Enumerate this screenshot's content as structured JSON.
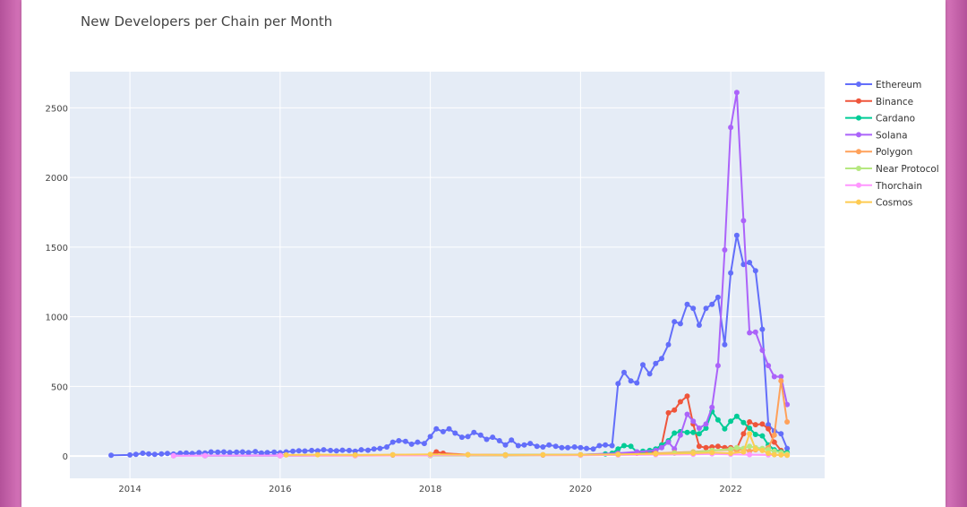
{
  "chart_data": {
    "type": "line",
    "title": "New Developers per Chain per Month",
    "xlabel": "",
    "ylabel": "",
    "ylim": [
      -160,
      2760
    ],
    "xlim": [
      2013.2,
      2023.25
    ],
    "x_ticks": [
      2014,
      2016,
      2018,
      2020,
      2022
    ],
    "x_tick_labels": [
      "2014",
      "2016",
      "2018",
      "2020",
      "2022"
    ],
    "y_ticks": [
      0,
      500,
      1000,
      1500,
      2000,
      2500
    ],
    "y_tick_labels": [
      "0",
      "500",
      "1000",
      "1500",
      "2000",
      "2500"
    ],
    "grid": true,
    "legend_position": "right",
    "background_color": "#e5ecf6",
    "series": [
      {
        "name": "Ethereum",
        "color": "#636efa",
        "points": [
          [
            2013.75,
            5
          ],
          [
            2014.0,
            8
          ],
          [
            2014.08,
            12
          ],
          [
            2014.17,
            20
          ],
          [
            2014.25,
            15
          ],
          [
            2014.33,
            12
          ],
          [
            2014.42,
            15
          ],
          [
            2014.5,
            18
          ],
          [
            2014.58,
            14
          ],
          [
            2014.67,
            20
          ],
          [
            2014.75,
            22
          ],
          [
            2014.83,
            18
          ],
          [
            2014.92,
            25
          ],
          [
            2015.0,
            22
          ],
          [
            2015.08,
            30
          ],
          [
            2015.17,
            28
          ],
          [
            2015.25,
            30
          ],
          [
            2015.33,
            26
          ],
          [
            2015.42,
            28
          ],
          [
            2015.5,
            30
          ],
          [
            2015.58,
            25
          ],
          [
            2015.67,
            32
          ],
          [
            2015.75,
            22
          ],
          [
            2015.83,
            25
          ],
          [
            2015.92,
            28
          ],
          [
            2016.0,
            24
          ],
          [
            2016.08,
            30
          ],
          [
            2016.17,
            35
          ],
          [
            2016.25,
            38
          ],
          [
            2016.33,
            36
          ],
          [
            2016.42,
            40
          ],
          [
            2016.5,
            38
          ],
          [
            2016.58,
            45
          ],
          [
            2016.67,
            40
          ],
          [
            2016.75,
            38
          ],
          [
            2016.83,
            42
          ],
          [
            2016.92,
            40
          ],
          [
            2017.0,
            35
          ],
          [
            2017.08,
            45
          ],
          [
            2017.17,
            42
          ],
          [
            2017.25,
            50
          ],
          [
            2017.33,
            55
          ],
          [
            2017.42,
            65
          ],
          [
            2017.5,
            100
          ],
          [
            2017.58,
            110
          ],
          [
            2017.67,
            105
          ],
          [
            2017.75,
            85
          ],
          [
            2017.83,
            100
          ],
          [
            2017.92,
            90
          ],
          [
            2018.0,
            140
          ],
          [
            2018.08,
            195
          ],
          [
            2018.17,
            175
          ],
          [
            2018.25,
            195
          ],
          [
            2018.33,
            165
          ],
          [
            2018.42,
            135
          ],
          [
            2018.5,
            140
          ],
          [
            2018.58,
            170
          ],
          [
            2018.67,
            150
          ],
          [
            2018.75,
            120
          ],
          [
            2018.83,
            135
          ],
          [
            2018.92,
            110
          ],
          [
            2019.0,
            80
          ],
          [
            2019.08,
            115
          ],
          [
            2019.17,
            75
          ],
          [
            2019.25,
            80
          ],
          [
            2019.33,
            90
          ],
          [
            2019.42,
            70
          ],
          [
            2019.5,
            65
          ],
          [
            2019.58,
            80
          ],
          [
            2019.67,
            70
          ],
          [
            2019.75,
            60
          ],
          [
            2019.83,
            60
          ],
          [
            2019.92,
            65
          ],
          [
            2020.0,
            60
          ],
          [
            2020.08,
            55
          ],
          [
            2020.17,
            50
          ],
          [
            2020.25,
            75
          ],
          [
            2020.33,
            80
          ],
          [
            2020.42,
            75
          ],
          [
            2020.5,
            520
          ],
          [
            2020.58,
            600
          ],
          [
            2020.67,
            540
          ],
          [
            2020.75,
            525
          ],
          [
            2020.83,
            655
          ],
          [
            2020.92,
            590
          ],
          [
            2021.0,
            665
          ],
          [
            2021.08,
            700
          ],
          [
            2021.17,
            800
          ],
          [
            2021.25,
            965
          ],
          [
            2021.33,
            950
          ],
          [
            2021.42,
            1090
          ],
          [
            2021.5,
            1060
          ],
          [
            2021.58,
            940
          ],
          [
            2021.67,
            1060
          ],
          [
            2021.75,
            1090
          ],
          [
            2021.83,
            1140
          ],
          [
            2021.92,
            800
          ],
          [
            2022.0,
            1315
          ],
          [
            2022.08,
            1585
          ],
          [
            2022.17,
            1375
          ],
          [
            2022.25,
            1390
          ],
          [
            2022.33,
            1330
          ],
          [
            2022.42,
            910
          ],
          [
            2022.5,
            225
          ],
          [
            2022.58,
            180
          ],
          [
            2022.67,
            160
          ],
          [
            2022.75,
            55
          ]
        ]
      },
      {
        "name": "Binance",
        "color": "#ef553b",
        "points": [
          [
            2016.0,
            5
          ],
          [
            2017.0,
            5
          ],
          [
            2017.5,
            8
          ],
          [
            2018.0,
            10
          ],
          [
            2018.08,
            30
          ],
          [
            2018.17,
            20
          ],
          [
            2018.5,
            10
          ],
          [
            2019.0,
            8
          ],
          [
            2019.5,
            8
          ],
          [
            2020.0,
            8
          ],
          [
            2020.5,
            10
          ],
          [
            2020.75,
            20
          ],
          [
            2021.0,
            30
          ],
          [
            2021.08,
            80
          ],
          [
            2021.17,
            310
          ],
          [
            2021.25,
            330
          ],
          [
            2021.33,
            390
          ],
          [
            2021.42,
            430
          ],
          [
            2021.5,
            230
          ],
          [
            2021.58,
            70
          ],
          [
            2021.67,
            60
          ],
          [
            2021.75,
            65
          ],
          [
            2021.83,
            70
          ],
          [
            2021.92,
            60
          ],
          [
            2022.0,
            60
          ],
          [
            2022.08,
            55
          ],
          [
            2022.17,
            160
          ],
          [
            2022.25,
            245
          ],
          [
            2022.33,
            225
          ],
          [
            2022.42,
            230
          ],
          [
            2022.5,
            195
          ],
          [
            2022.58,
            100
          ],
          [
            2022.67,
            40
          ],
          [
            2022.75,
            20
          ]
        ]
      },
      {
        "name": "Cardano",
        "color": "#00cc96",
        "points": [
          [
            2015.0,
            3
          ],
          [
            2016.0,
            3
          ],
          [
            2017.0,
            5
          ],
          [
            2018.0,
            5
          ],
          [
            2019.0,
            8
          ],
          [
            2020.0,
            10
          ],
          [
            2020.33,
            15
          ],
          [
            2020.42,
            20
          ],
          [
            2020.5,
            50
          ],
          [
            2020.58,
            75
          ],
          [
            2020.67,
            70
          ],
          [
            2020.75,
            30
          ],
          [
            2020.83,
            35
          ],
          [
            2020.92,
            40
          ],
          [
            2021.0,
            50
          ],
          [
            2021.08,
            80
          ],
          [
            2021.17,
            110
          ],
          [
            2021.25,
            165
          ],
          [
            2021.33,
            175
          ],
          [
            2021.42,
            170
          ],
          [
            2021.5,
            170
          ],
          [
            2021.58,
            160
          ],
          [
            2021.67,
            200
          ],
          [
            2021.75,
            320
          ],
          [
            2021.83,
            260
          ],
          [
            2021.92,
            195
          ],
          [
            2022.0,
            250
          ],
          [
            2022.08,
            285
          ],
          [
            2022.17,
            240
          ],
          [
            2022.25,
            200
          ],
          [
            2022.33,
            155
          ],
          [
            2022.42,
            145
          ],
          [
            2022.5,
            80
          ],
          [
            2022.58,
            45
          ],
          [
            2022.67,
            30
          ],
          [
            2022.75,
            25
          ]
        ]
      },
      {
        "name": "Solana",
        "color": "#ab63fa",
        "points": [
          [
            2014.58,
            3
          ],
          [
            2015.0,
            4
          ],
          [
            2016.0,
            5
          ],
          [
            2017.0,
            5
          ],
          [
            2018.0,
            5
          ],
          [
            2019.0,
            5
          ],
          [
            2020.0,
            10
          ],
          [
            2020.5,
            20
          ],
          [
            2020.75,
            30
          ],
          [
            2021.0,
            40
          ],
          [
            2021.08,
            60
          ],
          [
            2021.17,
            100
          ],
          [
            2021.25,
            50
          ],
          [
            2021.33,
            150
          ],
          [
            2021.42,
            300
          ],
          [
            2021.5,
            250
          ],
          [
            2021.58,
            200
          ],
          [
            2021.67,
            230
          ],
          [
            2021.75,
            350
          ],
          [
            2021.83,
            650
          ],
          [
            2021.92,
            1480
          ],
          [
            2022.0,
            2360
          ],
          [
            2022.08,
            2610
          ],
          [
            2022.17,
            1690
          ],
          [
            2022.25,
            885
          ],
          [
            2022.33,
            890
          ],
          [
            2022.42,
            760
          ],
          [
            2022.5,
            650
          ],
          [
            2022.58,
            570
          ],
          [
            2022.67,
            570
          ],
          [
            2022.75,
            370
          ]
        ]
      },
      {
        "name": "Polygon",
        "color": "#ffa15a",
        "points": [
          [
            2016.0,
            2
          ],
          [
            2017.0,
            3
          ],
          [
            2018.0,
            5
          ],
          [
            2019.0,
            5
          ],
          [
            2020.0,
            8
          ],
          [
            2020.5,
            10
          ],
          [
            2021.0,
            20
          ],
          [
            2021.25,
            25
          ],
          [
            2021.5,
            30
          ],
          [
            2021.75,
            40
          ],
          [
            2022.0,
            45
          ],
          [
            2022.08,
            40
          ],
          [
            2022.17,
            50
          ],
          [
            2022.25,
            35
          ],
          [
            2022.33,
            45
          ],
          [
            2022.42,
            50
          ],
          [
            2022.5,
            60
          ],
          [
            2022.58,
            150
          ],
          [
            2022.67,
            540
          ],
          [
            2022.75,
            245
          ]
        ]
      },
      {
        "name": "Near Protocol",
        "color": "#b6e880",
        "points": [
          [
            2018.0,
            2
          ],
          [
            2019.0,
            3
          ],
          [
            2020.0,
            5
          ],
          [
            2020.5,
            8
          ],
          [
            2021.0,
            15
          ],
          [
            2021.25,
            20
          ],
          [
            2021.5,
            25
          ],
          [
            2021.75,
            40
          ],
          [
            2022.0,
            50
          ],
          [
            2022.08,
            60
          ],
          [
            2022.17,
            55
          ],
          [
            2022.25,
            70
          ],
          [
            2022.33,
            60
          ],
          [
            2022.42,
            55
          ],
          [
            2022.5,
            45
          ],
          [
            2022.58,
            35
          ],
          [
            2022.67,
            25
          ],
          [
            2022.75,
            15
          ]
        ]
      },
      {
        "name": "Thorchain",
        "color": "#ff97ff",
        "points": [
          [
            2014.58,
            2
          ],
          [
            2015.0,
            3
          ],
          [
            2016.0,
            3
          ],
          [
            2017.0,
            4
          ],
          [
            2018.0,
            5
          ],
          [
            2019.0,
            5
          ],
          [
            2020.0,
            6
          ],
          [
            2020.5,
            8
          ],
          [
            2021.0,
            10
          ],
          [
            2021.5,
            12
          ],
          [
            2021.75,
            15
          ],
          [
            2022.0,
            12
          ],
          [
            2022.25,
            10
          ],
          [
            2022.5,
            8
          ],
          [
            2022.75,
            5
          ]
        ]
      },
      {
        "name": "Cosmos",
        "color": "#fecb52",
        "points": [
          [
            2016.08,
            8
          ],
          [
            2016.5,
            10
          ],
          [
            2017.0,
            8
          ],
          [
            2017.5,
            10
          ],
          [
            2018.0,
            12
          ],
          [
            2018.5,
            10
          ],
          [
            2019.0,
            8
          ],
          [
            2019.5,
            10
          ],
          [
            2020.0,
            10
          ],
          [
            2020.5,
            12
          ],
          [
            2021.0,
            15
          ],
          [
            2021.5,
            20
          ],
          [
            2021.75,
            25
          ],
          [
            2022.0,
            20
          ],
          [
            2022.17,
            30
          ],
          [
            2022.25,
            160
          ],
          [
            2022.33,
            50
          ],
          [
            2022.42,
            40
          ],
          [
            2022.5,
            20
          ],
          [
            2022.58,
            10
          ],
          [
            2022.67,
            8
          ],
          [
            2022.75,
            5
          ]
        ]
      }
    ]
  }
}
